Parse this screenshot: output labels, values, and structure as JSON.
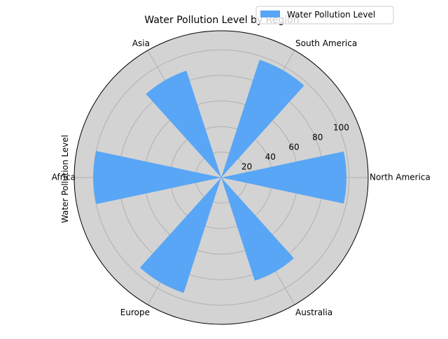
{
  "chart_data": {
    "type": "polar-bar",
    "title": "Water Pollution Level by Region",
    "ylabel": "Water Pollution Level",
    "categories": [
      "North America",
      "South America",
      "Asia",
      "Africa",
      "Europe",
      "Australia"
    ],
    "series": [
      {
        "name": "Water Pollution Level",
        "values": [
          98,
          97,
          88,
          100,
          95,
          85
        ]
      }
    ],
    "rlim": [
      0,
      115
    ],
    "rticks": [
      20,
      40,
      60,
      80,
      100
    ],
    "grid": true,
    "legend": "top-right",
    "colors": {
      "bar": "#58a6f5",
      "plot_background": "#d3d3d3",
      "grid": "#b0b0b0"
    }
  }
}
